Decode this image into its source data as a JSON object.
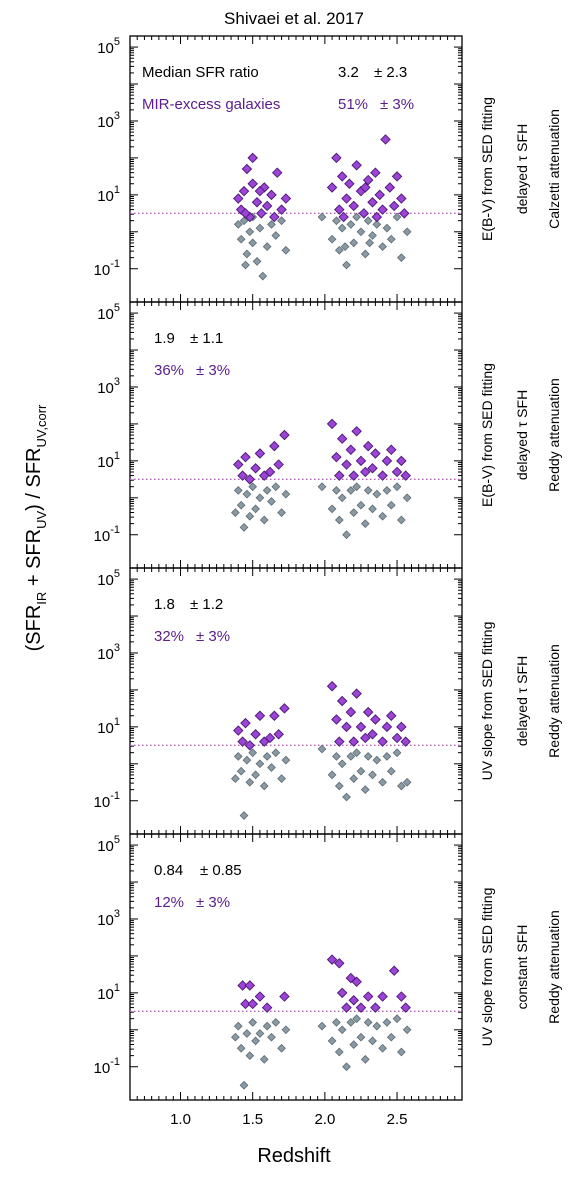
{
  "title": "Shivaei et al. 2017",
  "xlabel": "Redshift",
  "ylabel_parts": {
    "open": "(SFR",
    "sub1": "IR",
    "plus": " + SFR",
    "sub2": "UV",
    "close": ") / SFR",
    "sub3": "UV,corr"
  },
  "colors": {
    "excess": "#9b44d6",
    "excess_edge": "#4b1772",
    "normal": "#8a9aa4",
    "normal_edge": "#5c6b74",
    "excess_text": "#5a1d8a",
    "threshold_line": "#b05fb8"
  },
  "chart_data": {
    "type": "scatter",
    "xlim": [
      0.65,
      2.95
    ],
    "ylim_log10": [
      -1.9,
      5.3
    ],
    "yscale": "log",
    "xticks": [
      "1.0",
      "1.5",
      "2.0",
      "2.5"
    ],
    "xtick_values": [
      1.0,
      1.5,
      2.0,
      2.5
    ],
    "yticks": [
      {
        "base": "10",
        "exp": "-1"
      },
      {
        "base": "10",
        "exp": "1"
      },
      {
        "base": "10",
        "exp": "3"
      },
      {
        "base": "10",
        "exp": "5"
      }
    ],
    "ytick_values": [
      -1,
      1,
      3,
      5
    ],
    "threshold_log10": 0.5,
    "panels": [
      {
        "legend_label": "Median SFR ratio",
        "legend_excess_label": "MIR-excess galaxies",
        "median": "3.2",
        "median_err": "± 2.3",
        "fraction": "51%",
        "fraction_err": "± 3%",
        "side_labels": [
          "E(B-V) from SED fitting",
          "delayed τ SFH",
          "Calzetti attenuation"
        ],
        "excess": [
          [
            1.4,
            0.9
          ],
          [
            1.42,
            0.6
          ],
          [
            1.44,
            1.1
          ],
          [
            1.46,
            1.7
          ],
          [
            1.48,
            0.4
          ],
          [
            1.5,
            1.3
          ],
          [
            1.5,
            2.0
          ],
          [
            1.53,
            0.8
          ],
          [
            1.56,
            0.5
          ],
          [
            1.58,
            1.2
          ],
          [
            1.6,
            0.7
          ],
          [
            1.63,
            1.0
          ],
          [
            1.65,
            0.4
          ],
          [
            1.67,
            1.6
          ],
          [
            1.7,
            0.6
          ],
          [
            1.73,
            0.9
          ],
          [
            1.45,
            0.5
          ],
          [
            1.55,
            1.1
          ],
          [
            2.05,
            1.2
          ],
          [
            2.08,
            2.0
          ],
          [
            2.1,
            0.6
          ],
          [
            2.12,
            1.5
          ],
          [
            2.15,
            0.9
          ],
          [
            2.17,
            1.3
          ],
          [
            2.2,
            0.7
          ],
          [
            2.22,
            1.8
          ],
          [
            2.25,
            1.1
          ],
          [
            2.27,
            0.5
          ],
          [
            2.3,
            1.4
          ],
          [
            2.33,
            0.8
          ],
          [
            2.35,
            1.6
          ],
          [
            2.38,
            1.0
          ],
          [
            2.4,
            0.6
          ],
          [
            2.42,
            2.5
          ],
          [
            2.45,
            1.2
          ],
          [
            2.48,
            0.7
          ],
          [
            2.5,
            1.5
          ],
          [
            2.53,
            0.9
          ],
          [
            2.55,
            0.5
          ],
          [
            2.13,
            0.4
          ],
          [
            2.28,
            1.2
          ],
          [
            2.36,
            0.4
          ]
        ],
        "normal": [
          [
            1.4,
            0.2
          ],
          [
            1.42,
            -0.2
          ],
          [
            1.44,
            0.3
          ],
          [
            1.46,
            -0.6
          ],
          [
            1.48,
            0.0
          ],
          [
            1.5,
            -0.3
          ],
          [
            1.5,
            0.4
          ],
          [
            1.53,
            -0.8
          ],
          [
            1.55,
            0.1
          ],
          [
            1.57,
            -1.2
          ],
          [
            1.6,
            -0.4
          ],
          [
            1.63,
            0.2
          ],
          [
            1.66,
            -0.1
          ],
          [
            1.7,
            0.3
          ],
          [
            1.73,
            -0.5
          ],
          [
            1.45,
            -0.9
          ],
          [
            1.98,
            0.4
          ],
          [
            2.05,
            -0.2
          ],
          [
            2.08,
            0.3
          ],
          [
            2.1,
            -0.5
          ],
          [
            2.12,
            0.1
          ],
          [
            2.15,
            -0.9
          ],
          [
            2.18,
            0.2
          ],
          [
            2.2,
            -0.3
          ],
          [
            2.22,
            0.4
          ],
          [
            2.25,
            0.0
          ],
          [
            2.28,
            -0.6
          ],
          [
            2.3,
            0.3
          ],
          [
            2.33,
            -0.1
          ],
          [
            2.36,
            0.2
          ],
          [
            2.4,
            -0.4
          ],
          [
            2.43,
            0.1
          ],
          [
            2.46,
            -0.2
          ],
          [
            2.5,
            0.4
          ],
          [
            2.53,
            -0.7
          ],
          [
            2.57,
            0.0
          ],
          [
            2.14,
            -0.4
          ],
          [
            2.31,
            -0.3
          ]
        ]
      },
      {
        "legend_label": "",
        "legend_excess_label": "",
        "median": "1.9",
        "median_err": "± 1.1",
        "fraction": "36%",
        "fraction_err": "± 3%",
        "side_labels": [
          "E(B-V) from SED fitting",
          "delayed τ SFH",
          "Reddy attenuation"
        ],
        "excess": [
          [
            1.4,
            0.9
          ],
          [
            1.43,
            0.6
          ],
          [
            1.45,
            1.1
          ],
          [
            1.48,
            0.5
          ],
          [
            1.52,
            0.8
          ],
          [
            1.55,
            1.2
          ],
          [
            1.58,
            0.6
          ],
          [
            1.62,
            0.7
          ],
          [
            1.65,
            1.4
          ],
          [
            1.68,
            0.9
          ],
          [
            1.72,
            1.7
          ],
          [
            2.05,
            2.0
          ],
          [
            2.08,
            1.1
          ],
          [
            2.1,
            0.6
          ],
          [
            2.12,
            1.6
          ],
          [
            2.15,
            0.9
          ],
          [
            2.18,
            1.3
          ],
          [
            2.2,
            0.6
          ],
          [
            2.22,
            1.8
          ],
          [
            2.25,
            1.0
          ],
          [
            2.28,
            0.7
          ],
          [
            2.3,
            1.4
          ],
          [
            2.33,
            0.8
          ],
          [
            2.35,
            1.2
          ],
          [
            2.4,
            0.6
          ],
          [
            2.43,
            1.0
          ],
          [
            2.46,
            1.3
          ],
          [
            2.5,
            0.7
          ],
          [
            2.53,
            1.0
          ],
          [
            2.56,
            0.6
          ]
        ],
        "normal": [
          [
            1.38,
            -0.4
          ],
          [
            1.4,
            0.2
          ],
          [
            1.42,
            -0.2
          ],
          [
            1.44,
            -0.8
          ],
          [
            1.46,
            0.1
          ],
          [
            1.48,
            -0.5
          ],
          [
            1.5,
            0.3
          ],
          [
            1.52,
            -0.3
          ],
          [
            1.55,
            0.0
          ],
          [
            1.58,
            -0.6
          ],
          [
            1.6,
            0.2
          ],
          [
            1.63,
            -0.1
          ],
          [
            1.66,
            0.3
          ],
          [
            1.7,
            -0.4
          ],
          [
            1.73,
            0.1
          ],
          [
            1.98,
            0.3
          ],
          [
            2.05,
            -0.3
          ],
          [
            2.08,
            0.2
          ],
          [
            2.1,
            -0.6
          ],
          [
            2.12,
            0.0
          ],
          [
            2.15,
            -1.0
          ],
          [
            2.18,
            0.2
          ],
          [
            2.2,
            -0.4
          ],
          [
            2.22,
            0.3
          ],
          [
            2.25,
            -0.2
          ],
          [
            2.28,
            -0.7
          ],
          [
            2.3,
            0.2
          ],
          [
            2.33,
            -0.3
          ],
          [
            2.36,
            0.1
          ],
          [
            2.4,
            -0.5
          ],
          [
            2.43,
            0.2
          ],
          [
            2.46,
            -0.2
          ],
          [
            2.5,
            0.3
          ],
          [
            2.53,
            -0.6
          ],
          [
            2.57,
            0.0
          ]
        ]
      },
      {
        "legend_label": "",
        "legend_excess_label": "",
        "median": "1.8",
        "median_err": "± 1.2",
        "fraction": "32%",
        "fraction_err": "± 3%",
        "side_labels": [
          "UV slope from SED fitting",
          "delayed τ SFH",
          "Reddy attenuation"
        ],
        "excess": [
          [
            1.4,
            0.9
          ],
          [
            1.43,
            0.6
          ],
          [
            1.45,
            1.1
          ],
          [
            1.48,
            0.5
          ],
          [
            1.52,
            0.8
          ],
          [
            1.55,
            1.3
          ],
          [
            1.58,
            0.6
          ],
          [
            1.62,
            0.7
          ],
          [
            1.65,
            1.3
          ],
          [
            1.68,
            0.8
          ],
          [
            1.72,
            1.5
          ],
          [
            2.05,
            2.1
          ],
          [
            2.08,
            1.2
          ],
          [
            2.1,
            0.6
          ],
          [
            2.12,
            1.7
          ],
          [
            2.15,
            1.0
          ],
          [
            2.18,
            1.4
          ],
          [
            2.2,
            0.6
          ],
          [
            2.22,
            1.9
          ],
          [
            2.25,
            1.0
          ],
          [
            2.28,
            0.7
          ],
          [
            2.3,
            1.4
          ],
          [
            2.33,
            0.8
          ],
          [
            2.35,
            1.2
          ],
          [
            2.4,
            0.6
          ],
          [
            2.43,
            1.0
          ],
          [
            2.46,
            1.3
          ],
          [
            2.5,
            0.7
          ],
          [
            2.53,
            1.0
          ],
          [
            2.56,
            0.6
          ]
        ],
        "normal": [
          [
            1.38,
            -0.4
          ],
          [
            1.4,
            0.2
          ],
          [
            1.42,
            -0.2
          ],
          [
            1.44,
            -1.4
          ],
          [
            1.46,
            0.1
          ],
          [
            1.48,
            -0.5
          ],
          [
            1.5,
            0.3
          ],
          [
            1.52,
            -0.3
          ],
          [
            1.55,
            0.0
          ],
          [
            1.58,
            -0.6
          ],
          [
            1.6,
            0.2
          ],
          [
            1.63,
            -0.1
          ],
          [
            1.66,
            0.3
          ],
          [
            1.7,
            -0.4
          ],
          [
            1.73,
            0.1
          ],
          [
            1.98,
            0.4
          ],
          [
            2.05,
            -0.3
          ],
          [
            2.08,
            0.2
          ],
          [
            2.1,
            -0.6
          ],
          [
            2.12,
            0.0
          ],
          [
            2.15,
            -0.9
          ],
          [
            2.18,
            0.2
          ],
          [
            2.2,
            -0.4
          ],
          [
            2.22,
            0.3
          ],
          [
            2.25,
            -0.2
          ],
          [
            2.28,
            -0.7
          ],
          [
            2.3,
            0.2
          ],
          [
            2.33,
            -0.3
          ],
          [
            2.36,
            0.1
          ],
          [
            2.4,
            -0.5
          ],
          [
            2.43,
            0.2
          ],
          [
            2.46,
            -0.2
          ],
          [
            2.5,
            0.3
          ],
          [
            2.53,
            -0.6
          ],
          [
            2.57,
            -0.5
          ]
        ]
      },
      {
        "legend_label": "",
        "legend_excess_label": "",
        "median": "0.84",
        "median_err": "± 0.85",
        "fraction": "12%",
        "fraction_err": "± 3%",
        "side_labels": [
          "UV slope from SED fitting",
          "constant SFH",
          "Reddy attenuation"
        ],
        "excess": [
          [
            1.43,
            1.2
          ],
          [
            1.45,
            0.7
          ],
          [
            1.48,
            1.2
          ],
          [
            1.5,
            0.7
          ],
          [
            1.55,
            0.9
          ],
          [
            1.6,
            0.6
          ],
          [
            1.72,
            0.9
          ],
          [
            2.05,
            1.9
          ],
          [
            2.1,
            1.8
          ],
          [
            2.12,
            1.0
          ],
          [
            2.15,
            0.6
          ],
          [
            2.18,
            1.4
          ],
          [
            2.2,
            0.8
          ],
          [
            2.22,
            1.3
          ],
          [
            2.25,
            0.6
          ],
          [
            2.3,
            0.9
          ],
          [
            2.35,
            0.6
          ],
          [
            2.4,
            0.9
          ],
          [
            2.48,
            1.6
          ],
          [
            2.53,
            0.9
          ],
          [
            2.56,
            0.6
          ]
        ],
        "normal": [
          [
            1.38,
            -0.2
          ],
          [
            1.4,
            0.1
          ],
          [
            1.42,
            -0.5
          ],
          [
            1.44,
            -1.5
          ],
          [
            1.46,
            -0.1
          ],
          [
            1.48,
            -0.7
          ],
          [
            1.5,
            0.2
          ],
          [
            1.52,
            -0.3
          ],
          [
            1.55,
            -0.1
          ],
          [
            1.58,
            -0.8
          ],
          [
            1.6,
            0.1
          ],
          [
            1.63,
            -0.2
          ],
          [
            1.66,
            0.2
          ],
          [
            1.7,
            -0.5
          ],
          [
            1.73,
            0.0
          ],
          [
            1.98,
            0.1
          ],
          [
            2.05,
            -0.3
          ],
          [
            2.08,
            0.2
          ],
          [
            2.1,
            -0.6
          ],
          [
            2.12,
            0.0
          ],
          [
            2.15,
            -1.0
          ],
          [
            2.18,
            0.2
          ],
          [
            2.2,
            -0.4
          ],
          [
            2.22,
            0.3
          ],
          [
            2.25,
            -0.2
          ],
          [
            2.28,
            -0.8
          ],
          [
            2.3,
            0.2
          ],
          [
            2.33,
            -0.3
          ],
          [
            2.36,
            0.1
          ],
          [
            2.4,
            -0.5
          ],
          [
            2.43,
            0.2
          ],
          [
            2.46,
            -0.2
          ],
          [
            2.5,
            0.3
          ],
          [
            2.53,
            -0.6
          ],
          [
            2.57,
            0.0
          ]
        ]
      }
    ]
  }
}
